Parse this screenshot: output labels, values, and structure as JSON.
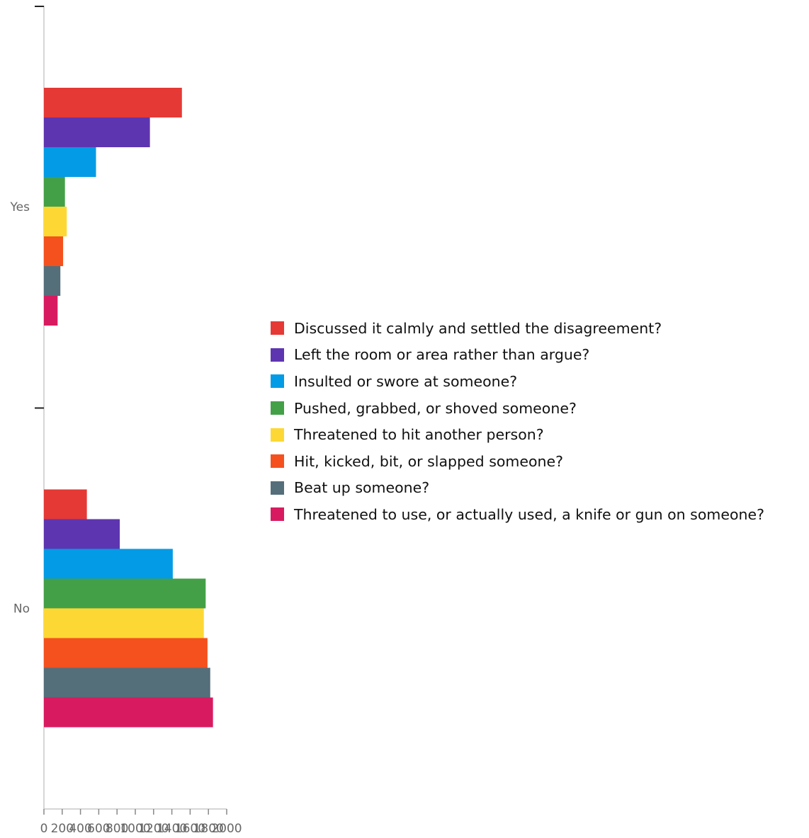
{
  "chart_data": {
    "type": "bar",
    "orientation": "horizontal",
    "categories": [
      "Yes",
      "No"
    ],
    "series": [
      {
        "name": "Discussed it calmly and settled the disagreement?",
        "color": "#e53935",
        "values": [
          1510,
          470
        ]
      },
      {
        "name": "Left the room or area rather than argue?",
        "color": "#5e35b1",
        "values": [
          1160,
          830
        ]
      },
      {
        "name": "Insulted or swore at someone?",
        "color": "#039be5",
        "values": [
          570,
          1410
        ]
      },
      {
        "name": "Pushed, grabbed, or shoved someone?",
        "color": "#43a047",
        "values": [
          230,
          1770
        ]
      },
      {
        "name": "Threatened to hit another person?",
        "color": "#fdd835",
        "values": [
          250,
          1750
        ]
      },
      {
        "name": "Hit, kicked, bit, or slapped someone?",
        "color": "#f4511e",
        "values": [
          210,
          1790
        ]
      },
      {
        "name": "Beat up someone?",
        "color": "#546e7a",
        "values": [
          180,
          1820
        ]
      },
      {
        "name": "Threatened to use, or actually used, a knife or gun on someone?",
        "color": "#d81b60",
        "values": [
          150,
          1850
        ]
      }
    ],
    "xticks": [
      "0",
      "200",
      "400",
      "600",
      "800",
      "1000",
      "1200",
      "1400",
      "1600",
      "1800",
      "2000"
    ],
    "xlim": [
      0,
      2000
    ],
    "title": "",
    "xlabel": "",
    "ylabel": "",
    "grid": false,
    "legend_position": "right"
  }
}
